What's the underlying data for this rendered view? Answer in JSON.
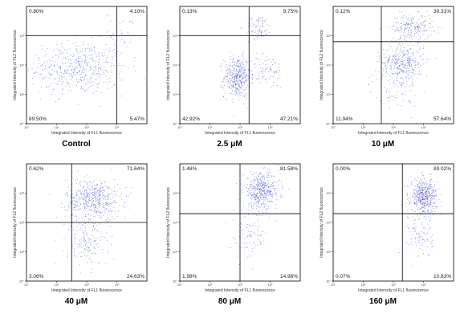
{
  "figure": {
    "xlabel": "Integrated Intensity of FL1 fluorescence",
    "ylabel": "Integrated Intensity of FL2 fluorescence",
    "dot_color": "#2b35c9",
    "tick_labels": [
      "10°",
      "10¹",
      "10²",
      "10³"
    ]
  },
  "chart_data": [
    {
      "type": "scatter",
      "caption": "Control",
      "quadrants": {
        "ul": "0.80%",
        "ur": "4.10%",
        "ll": "89.50%",
        "lr": "5.47%"
      },
      "gate": [
        3.0,
        3.0
      ],
      "xlim": [
        0,
        4
      ],
      "ylim": [
        0,
        4
      ]
    },
    {
      "type": "scatter",
      "caption": "2.5 μM",
      "quadrants": {
        "ul": "0.13%",
        "ur": "9.75%",
        "ll": "42.92%",
        "lr": "47.21%"
      },
      "gate": [
        2.3,
        3.0
      ],
      "xlim": [
        0,
        4
      ],
      "ylim": [
        0,
        4
      ]
    },
    {
      "type": "scatter",
      "caption": "10 μM",
      "quadrants": {
        "ul": "0.12%",
        "ur": "30.31%",
        "ll": "11.94%",
        "lr": "57.64%"
      },
      "gate": [
        1.6,
        2.8
      ],
      "xlim": [
        0,
        4
      ],
      "ylim": [
        0,
        4
      ]
    },
    {
      "type": "scatter",
      "caption": "40 μM",
      "quadrants": {
        "ul": "0.62%",
        "ur": "71.64%",
        "ll": "3.06%",
        "lr": "24.63%"
      },
      "gate": [
        1.5,
        2.0
      ],
      "xlim": [
        0,
        4
      ],
      "ylim": [
        0,
        4
      ]
    },
    {
      "type": "scatter",
      "caption": "80 μM",
      "quadrants": {
        "ul": "1.48%",
        "ur": "81.58%",
        "ll": "1.98%",
        "lr": "14.96%"
      },
      "gate": [
        2.0,
        2.3
      ],
      "xlim": [
        0,
        4
      ],
      "ylim": [
        0,
        4
      ]
    },
    {
      "type": "scatter",
      "caption": "160 μM",
      "quadrants": {
        "ul": "0.00%",
        "ur": "89.02%",
        "ll": "0.07%",
        "lr": "10.83%"
      },
      "gate": [
        2.3,
        2.3
      ],
      "xlim": [
        0,
        4
      ],
      "ylim": [
        0,
        4
      ]
    }
  ]
}
